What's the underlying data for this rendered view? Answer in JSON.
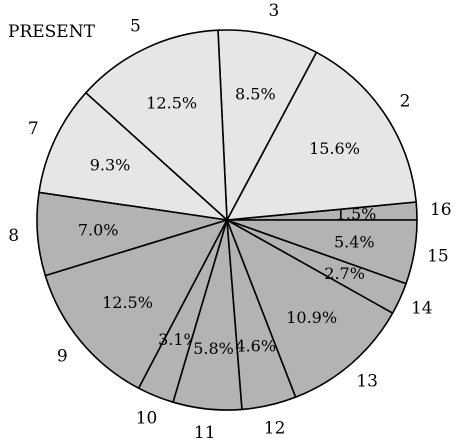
{
  "title": "PRESENT",
  "chart_data": {
    "type": "pie",
    "title": "PRESENT",
    "start_angle_deg": 0,
    "direction": "counterclockwise",
    "slices": [
      {
        "label": "16",
        "value": 1.5,
        "value_label": "1.5%",
        "color": "#b3b3b3"
      },
      {
        "label": "2",
        "value": 15.6,
        "value_label": "15.6%",
        "color": "#e6e6e6"
      },
      {
        "label": "3",
        "value": 8.5,
        "value_label": "8.5%",
        "color": "#e6e6e6"
      },
      {
        "label": "5",
        "value": 12.5,
        "value_label": "12.5%",
        "color": "#e6e6e6"
      },
      {
        "label": "7",
        "value": 9.3,
        "value_label": "9.3%",
        "color": "#e6e6e6"
      },
      {
        "label": "8",
        "value": 7.0,
        "value_label": "7.0%",
        "color": "#b3b3b3"
      },
      {
        "label": "9",
        "value": 12.5,
        "value_label": "12.5%",
        "color": "#b3b3b3"
      },
      {
        "label": "10",
        "value": 3.1,
        "value_label": "3.1%",
        "color": "#b3b3b3"
      },
      {
        "label": "11",
        "value": 5.8,
        "value_label": "5.8%",
        "color": "#b3b3b3"
      },
      {
        "label": "12",
        "value": 4.6,
        "value_label": "4.6%",
        "color": "#b3b3b3"
      },
      {
        "label": "13",
        "value": 10.9,
        "value_label": "10.9%",
        "color": "#b3b3b3"
      },
      {
        "label": "14",
        "value": 2.7,
        "value_label": "2.7%",
        "color": "#b3b3b3"
      },
      {
        "label": "15",
        "value": 5.4,
        "value_label": "5.4%",
        "color": "#b3b3b3"
      }
    ]
  }
}
